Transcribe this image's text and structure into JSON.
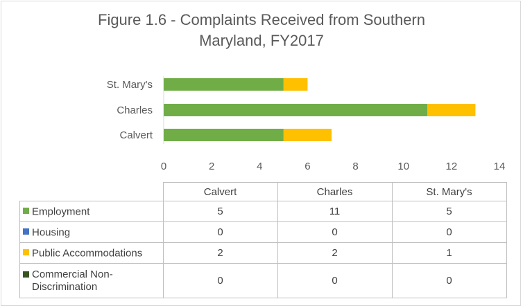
{
  "chart_data": {
    "type": "bar",
    "orientation": "horizontal",
    "stacked": true,
    "title": "Figure 1.6 - Complaints Received from Southern Maryland, FY2017",
    "title_lines": [
      "Figure 1.6 - Complaints Received from Southern",
      "Maryland, FY2017"
    ],
    "categories": [
      "Calvert",
      "Charles",
      "St. Mary's"
    ],
    "series": [
      {
        "name": "Employment",
        "values": [
          5,
          11,
          5
        ],
        "color": "#70ad47"
      },
      {
        "name": "Housing",
        "values": [
          0,
          0,
          0
        ],
        "color": "#4472c4"
      },
      {
        "name": "Public Accommodations",
        "values": [
          2,
          2,
          1
        ],
        "color": "#ffc000"
      },
      {
        "name": "Commercial Non-Discrimination",
        "name_lines": [
          "Commercial Non-",
          "Discrimination"
        ],
        "values": [
          0,
          0,
          0
        ],
        "color": "#375623"
      }
    ],
    "xlim": [
      0,
      14
    ],
    "xticks": [
      "0",
      "2",
      "4",
      "6",
      "8",
      "10",
      "12",
      "14"
    ],
    "grid": false,
    "legend": "data-table"
  }
}
